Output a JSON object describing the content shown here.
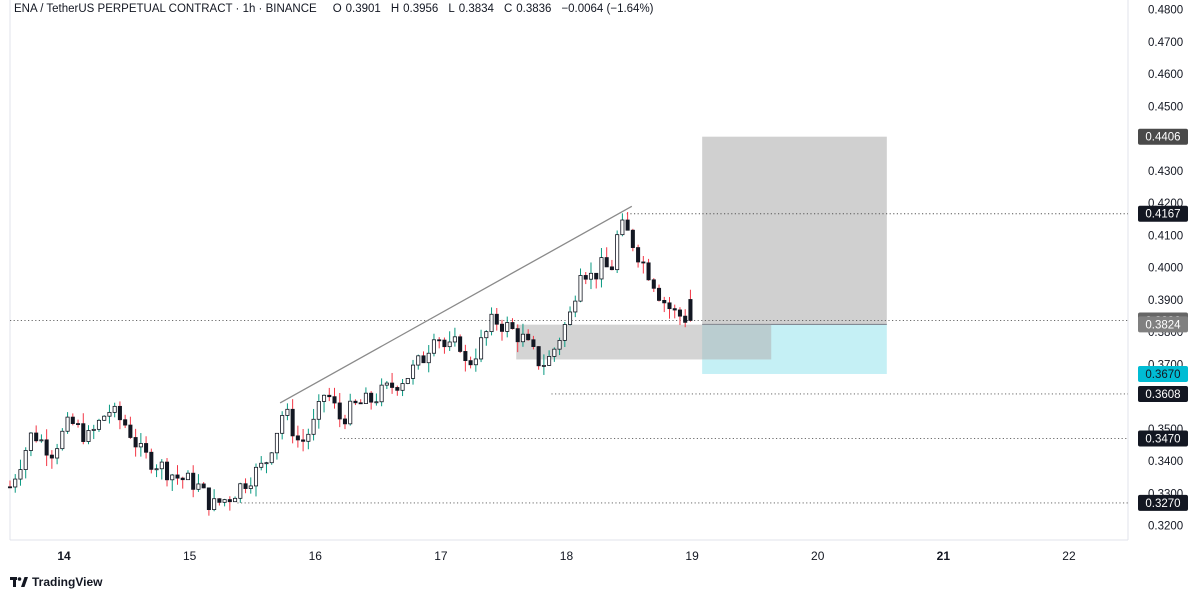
{
  "header": {
    "symbol": "ENA / TetherUS PERPETUAL CONTRACT · 1h · BINANCE",
    "open_label": "O",
    "open": "0.3901",
    "high_label": "H",
    "high": "0.3956",
    "low_label": "L",
    "low": "0.3834",
    "close_label": "C",
    "close": "0.3836",
    "change": "−0.0064 (−1.64%)"
  },
  "watermark": {
    "label": "TradingView",
    "icon": "tradingview-logo-icon"
  },
  "colors": {
    "up": "#089981",
    "down": "#f23645",
    "neutral": "#131722",
    "zone_gray": "#c8c8c8",
    "zone_cyan": "#b2ebf2",
    "tag_dark": "#131722",
    "tag_gray": "#808080",
    "tag_cyan": "#00bcd4"
  },
  "chart_data": {
    "type": "candlestick",
    "title": "",
    "timeframe": "1h",
    "exchange": "BINANCE",
    "x_ticks": [
      "14",
      "15",
      "16",
      "17",
      "18",
      "19",
      "20",
      "21",
      "22"
    ],
    "y_ticks": [
      "0.4800",
      "0.4700",
      "0.4600",
      "0.4500",
      "0.4400",
      "0.4300",
      "0.4200",
      "0.4100",
      "0.4000",
      "0.3900",
      "0.3800",
      "0.3700",
      "0.3600",
      "0.3500",
      "0.3400",
      "0.3300",
      "0.3200"
    ],
    "y_tick_values": [
      0.48,
      0.47,
      0.46,
      0.45,
      0.44,
      0.43,
      0.42,
      0.41,
      0.4,
      0.39,
      0.38,
      0.37,
      0.36,
      0.35,
      0.34,
      0.33,
      0.32
    ],
    "ylim": [
      0.3155,
      0.483
    ],
    "xlim_days": [
      13.57,
      22.47
    ],
    "grid": false,
    "close_path": [
      [
        13.57,
        0.332
      ],
      [
        13.75,
        0.349
      ],
      [
        13.9,
        0.343
      ],
      [
        14.05,
        0.352
      ],
      [
        14.2,
        0.347
      ],
      [
        14.35,
        0.356
      ],
      [
        14.5,
        0.351
      ],
      [
        14.62,
        0.342
      ],
      [
        14.75,
        0.339
      ],
      [
        14.9,
        0.335
      ],
      [
        15.05,
        0.333
      ],
      [
        15.18,
        0.326
      ],
      [
        15.32,
        0.329
      ],
      [
        15.45,
        0.334
      ],
      [
        15.6,
        0.339
      ],
      [
        15.75,
        0.356
      ],
      [
        15.88,
        0.345
      ],
      [
        16.0,
        0.352
      ],
      [
        16.08,
        0.362
      ],
      [
        16.2,
        0.353
      ],
      [
        16.32,
        0.357
      ],
      [
        16.45,
        0.359
      ],
      [
        16.6,
        0.363
      ],
      [
        16.75,
        0.367
      ],
      [
        16.88,
        0.373
      ],
      [
        16.95,
        0.381
      ],
      [
        17.05,
        0.374
      ],
      [
        17.15,
        0.377
      ],
      [
        17.2,
        0.369
      ],
      [
        17.3,
        0.375
      ],
      [
        17.42,
        0.384
      ],
      [
        17.55,
        0.381
      ],
      [
        17.65,
        0.378
      ],
      [
        17.72,
        0.374
      ],
      [
        17.8,
        0.37
      ],
      [
        17.87,
        0.372
      ],
      [
        17.95,
        0.379
      ],
      [
        18.05,
        0.387
      ],
      [
        18.1,
        0.401
      ],
      [
        18.2,
        0.397
      ],
      [
        18.3,
        0.401
      ],
      [
        18.35,
        0.398
      ],
      [
        18.42,
        0.413
      ],
      [
        18.5,
        0.41
      ],
      [
        18.6,
        0.402
      ],
      [
        18.68,
        0.397
      ],
      [
        18.75,
        0.391
      ],
      [
        18.85,
        0.386
      ],
      [
        19.0,
        0.3836
      ]
    ],
    "drawings": {
      "trendline": {
        "from": [
          15.72,
          0.358
        ],
        "to": [
          18.52,
          0.419
        ]
      },
      "horizontal_levels": [
        {
          "price": 0.4167,
          "from_day": 18.48,
          "label": "0.4167"
        },
        {
          "price": 0.3836,
          "from_day": 13.57,
          "label": "0.3836"
        },
        {
          "price": 0.3608,
          "from_day": 17.88,
          "label": "0.3608"
        },
        {
          "price": 0.347,
          "from_day": 16.2,
          "label": "0.3470"
        },
        {
          "price": 0.327,
          "from_day": 15.38,
          "label": "0.3270"
        }
      ],
      "demand_zone": {
        "x0": 17.6,
        "x1": 19.63,
        "y0": 0.3715,
        "y1": 0.3823
      },
      "position": {
        "x0": 19.08,
        "x1": 20.55,
        "entry": 0.3824,
        "target": 0.4406,
        "stop": 0.367,
        "entry_label": "0.3824",
        "target_label": "0.4406",
        "stop_label": "0.3670"
      }
    },
    "last_price": "0.3836"
  }
}
